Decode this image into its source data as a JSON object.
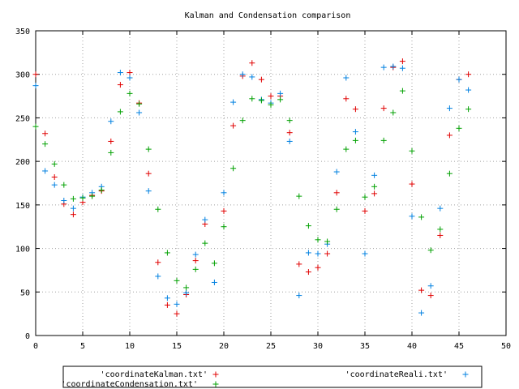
{
  "chart_data": {
    "type": "scatter",
    "title": "Kalman and Condensation comparison",
    "xlabel": "",
    "ylabel": "",
    "xlim": [
      0,
      50
    ],
    "ylim": [
      0,
      350
    ],
    "x_ticks": [
      0,
      5,
      10,
      15,
      20,
      25,
      30,
      35,
      40,
      45,
      50
    ],
    "y_ticks": [
      0,
      50,
      100,
      150,
      200,
      250,
      300,
      350
    ],
    "grid": true,
    "legend_position": "bottom",
    "series": [
      {
        "name": "'coordinateKalman.txt'",
        "color": "#e00000",
        "marker": "plus",
        "x": [
          0,
          1,
          2,
          3,
          4,
          5,
          6,
          7,
          8,
          9,
          10,
          11,
          12,
          13,
          14,
          15,
          16,
          17,
          18,
          19,
          20,
          21,
          22,
          23,
          24,
          25,
          26,
          27,
          28,
          29,
          30,
          31,
          32,
          33,
          34,
          35,
          36,
          37,
          38,
          39,
          40,
          41,
          42,
          43,
          44,
          45,
          46
        ],
        "y": [
          300,
          232,
          182,
          151,
          139,
          153,
          161,
          166,
          223,
          288,
          302,
          267,
          186,
          84,
          35,
          25,
          47,
          86,
          128,
          null,
          143,
          241,
          298,
          313,
          294,
          275,
          275,
          233,
          82,
          73,
          78,
          94,
          164,
          272,
          260,
          143,
          163,
          261,
          308,
          315,
          174,
          52,
          46,
          115,
          230,
          294,
          300
        ]
      },
      {
        "name": "'coordinateReali.txt'",
        "color": "#0080e0",
        "marker": "plus",
        "x": [
          0,
          1,
          2,
          3,
          4,
          5,
          6,
          7,
          8,
          9,
          10,
          11,
          12,
          13,
          14,
          15,
          16,
          17,
          18,
          19,
          20,
          21,
          22,
          23,
          24,
          25,
          26,
          27,
          28,
          29,
          30,
          31,
          32,
          33,
          34,
          35,
          36,
          37,
          38,
          39,
          40,
          41,
          42,
          43,
          44,
          45,
          46
        ],
        "y": [
          287,
          189,
          173,
          155,
          146,
          159,
          164,
          171,
          246,
          302,
          296,
          256,
          166,
          68,
          43,
          36,
          49,
          93,
          133,
          61,
          164,
          268,
          300,
          297,
          271,
          267,
          278,
          223,
          46,
          95,
          94,
          105,
          188,
          296,
          234,
          94,
          184,
          308,
          309,
          307,
          137,
          26,
          57,
          146,
          261,
          294,
          282
        ]
      },
      {
        "name": "'coordinateCondensation.txt'",
        "color": "#00a000",
        "marker": "plus",
        "x": [
          0,
          1,
          2,
          3,
          4,
          5,
          6,
          7,
          8,
          9,
          10,
          11,
          12,
          13,
          14,
          15,
          16,
          17,
          18,
          19,
          20,
          21,
          22,
          23,
          24,
          25,
          26,
          27,
          28,
          29,
          30,
          31,
          32,
          33,
          34,
          35,
          36,
          37,
          38,
          39,
          40,
          41,
          42,
          43,
          44,
          45,
          46
        ],
        "y": [
          240,
          220,
          197,
          173,
          157,
          158,
          160,
          167,
          210,
          257,
          278,
          266,
          214,
          145,
          95,
          63,
          55,
          76,
          106,
          83,
          125,
          192,
          247,
          272,
          270,
          265,
          271,
          247,
          160,
          126,
          110,
          108,
          145,
          214,
          224,
          159,
          171,
          224,
          256,
          281,
          212,
          136,
          98,
          122,
          186,
          238,
          260
        ]
      }
    ]
  }
}
